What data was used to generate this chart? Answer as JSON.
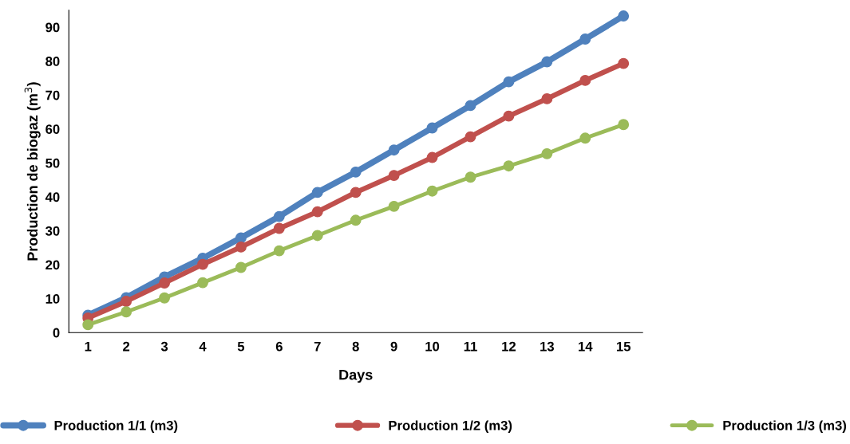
{
  "chart_data": {
    "type": "line",
    "xlabel": "Days",
    "ylabel": "Production de biogaz (m$^{3}$)",
    "categories": [
      "1",
      "2",
      "3",
      "4",
      "5",
      "6",
      "7",
      "8",
      "9",
      "10",
      "11",
      "12",
      "13",
      "14",
      "15"
    ],
    "series": [
      {
        "name": "Production 1/1 (m3)",
        "color": "#4f81bd",
        "values": [
          5.1,
          10.3,
          16.4,
          21.9,
          27.9,
          34.2,
          41.3,
          47.3,
          53.8,
          60.3,
          66.9,
          73.9,
          79.8,
          86.5,
          93.3
        ]
      },
      {
        "name": "Production 1/2 (m3)",
        "color": "#c0504d",
        "values": [
          4.3,
          9.2,
          14.6,
          20.1,
          25.2,
          30.7,
          35.6,
          41.3,
          46.3,
          51.6,
          57.7,
          63.8,
          68.9,
          74.3,
          79.3
        ]
      },
      {
        "name": "Production 1/3 (m3)",
        "color": "#9bbb59",
        "values": [
          2.3,
          6.1,
          10.2,
          14.7,
          19.2,
          24.1,
          28.6,
          33.1,
          37.2,
          41.7,
          45.8,
          49.1,
          52.7,
          57.3,
          61.3
        ]
      }
    ],
    "ylim": [
      0,
      95
    ],
    "yticks": [
      0,
      10,
      20,
      30,
      40,
      50,
      60,
      70,
      80,
      90
    ],
    "grid": false,
    "legend": "bottom",
    "marker": "circle",
    "line_style": "solid"
  }
}
